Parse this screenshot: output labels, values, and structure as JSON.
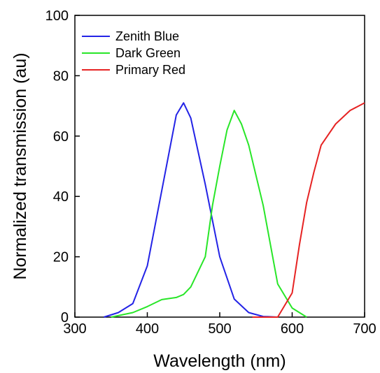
{
  "chart_data": {
    "type": "line",
    "xlabel": "Wavelength (nm)",
    "ylabel": "Normalized transmission (au)",
    "xlim": [
      300,
      700
    ],
    "ylim": [
      0,
      100
    ],
    "xticks": [
      300,
      400,
      500,
      600,
      700
    ],
    "yticks": [
      0,
      20,
      40,
      60,
      80,
      100
    ],
    "grid": false,
    "legend": "top-left",
    "series": [
      {
        "name": "Zenith Blue",
        "color": "#2323e6",
        "x": [
          340,
          360,
          380,
          400,
          420,
          440,
          450,
          460,
          480,
          500,
          520,
          540,
          560,
          580
        ],
        "y": [
          0,
          1.5,
          4.5,
          17,
          42,
          67,
          71,
          66,
          44,
          20,
          6,
          1.5,
          0.2,
          0
        ]
      },
      {
        "name": "Dark Green",
        "color": "#28e628",
        "x": [
          350,
          380,
          400,
          420,
          440,
          450,
          460,
          480,
          490,
          500,
          510,
          520,
          530,
          540,
          560,
          580,
          600,
          620
        ],
        "y": [
          0,
          1.5,
          3.5,
          5.8,
          6.5,
          7.5,
          10,
          20,
          37,
          50,
          62,
          68.5,
          64,
          57,
          37,
          11,
          3,
          0
        ]
      },
      {
        "name": "Primary Red",
        "color": "#e62323",
        "x": [
          545,
          560,
          580,
          590,
          600,
          610,
          620,
          630,
          640,
          660,
          680,
          700
        ],
        "y": [
          0,
          0,
          0,
          4,
          8,
          24,
          38,
          48,
          57,
          64,
          68.5,
          71
        ]
      }
    ]
  }
}
